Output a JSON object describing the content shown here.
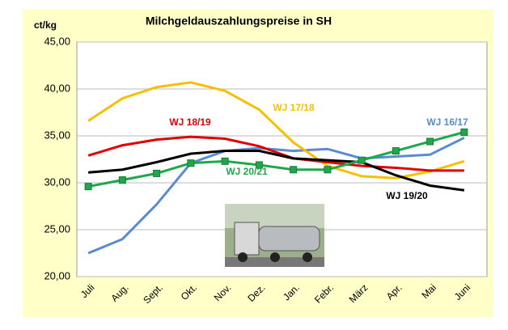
{
  "chart_data": {
    "type": "line",
    "title": "Milchgeldauszahlungspreise in SH",
    "y_label": "ct/kg",
    "categories": [
      "Juli",
      "Aug.",
      "Sept.",
      "Okt.",
      "Nov.",
      "Dez.",
      "Jan.",
      "Febr.",
      "März",
      "Apr.",
      "Mai",
      "Juni"
    ],
    "ylim": [
      20,
      45
    ],
    "yticks": [
      {
        "value": 20,
        "label": "20,00"
      },
      {
        "value": 25,
        "label": "25,00"
      },
      {
        "value": 30,
        "label": "30,00"
      },
      {
        "value": 35,
        "label": "35,00"
      },
      {
        "value": 40,
        "label": "40,00"
      },
      {
        "value": 45,
        "label": "45,00"
      }
    ],
    "grid": true,
    "series": [
      {
        "name": "WJ 16/17",
        "color": "#5a8acf",
        "values": [
          22.5,
          24.0,
          27.7,
          32.1,
          33.4,
          33.7,
          33.4,
          33.6,
          32.6,
          32.8,
          33.0,
          34.8
        ]
      },
      {
        "name": "WJ 17/18",
        "color": "#f5c000",
        "values": [
          36.6,
          39.0,
          40.2,
          40.7,
          39.8,
          37.8,
          34.3,
          31.8,
          30.7,
          30.5,
          31.2,
          32.3
        ]
      },
      {
        "name": "WJ 18/19",
        "color": "#e00000",
        "values": [
          32.9,
          34.0,
          34.6,
          34.9,
          34.7,
          33.9,
          32.6,
          32.2,
          31.8,
          31.6,
          31.3,
          31.3
        ]
      },
      {
        "name": "WJ 19/20",
        "color": "#000000",
        "values": [
          31.1,
          31.4,
          32.2,
          33.1,
          33.4,
          33.4,
          32.6,
          32.4,
          32.2,
          30.8,
          29.7,
          29.2
        ]
      },
      {
        "name": "WJ 20/21",
        "color": "#1fa84a",
        "markers": true,
        "values": [
          29.6,
          30.3,
          31.0,
          32.1,
          32.3,
          31.9,
          31.4,
          31.4,
          32.4,
          33.4,
          34.4,
          35.4
        ]
      }
    ]
  }
}
